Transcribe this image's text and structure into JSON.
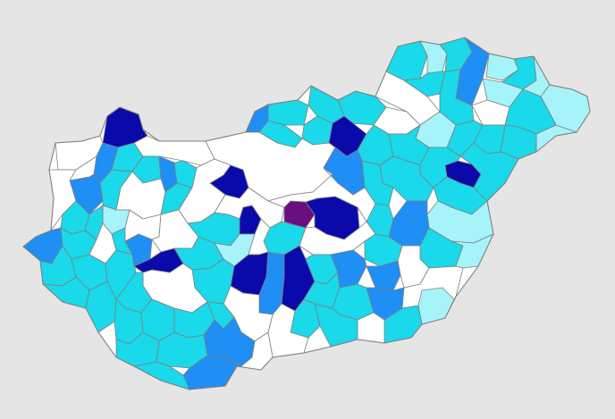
{
  "map": {
    "title": "",
    "background": "#e5e5e5",
    "border_color": "#7f7f7f",
    "base_fill": "#ffffff",
    "palette": {
      "white": "#ffffff",
      "pale_cyan": "#a6f4fa",
      "cyan": "#19d9ea",
      "azure": "#1f8ef5",
      "navy": "#0a0aaa",
      "purple": "#6a0f7e"
    },
    "color_classes_in_order": [
      "white",
      "pale_cyan",
      "cyan",
      "azure",
      "navy",
      "purple"
    ],
    "legend": null
  }
}
